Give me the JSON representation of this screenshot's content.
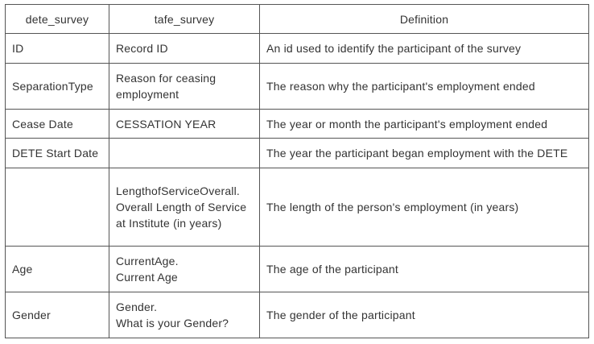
{
  "table": {
    "headers": [
      "dete_survey",
      "tafe_survey",
      "Definition"
    ],
    "rows": [
      {
        "dete": "ID",
        "tafe": [
          "Record ID"
        ],
        "definition": "An id used to identify the participant of the survey"
      },
      {
        "dete": "SeparationType",
        "tafe": [
          "Reason for ceasing",
          "employment"
        ],
        "definition": "The reason why the participant's employment ended"
      },
      {
        "dete": "Cease Date",
        "tafe": [
          "CESSATION YEAR"
        ],
        "definition": "The year or month the participant's employment ended"
      },
      {
        "dete": "DETE Start Date",
        "tafe": [],
        "definition": "The year the participant began employment with the DETE"
      },
      {
        "dete": "",
        "tafe": [
          "LengthofServiceOverall.",
          "Overall Length of Service",
          "at Institute (in years)"
        ],
        "definition": "The length of the person's employment (in years)"
      },
      {
        "dete": "Age",
        "tafe": [
          "CurrentAge.",
          "Current Age"
        ],
        "definition": "The age of the participant"
      },
      {
        "dete": "Gender",
        "tafe": [
          "Gender.",
          "What is your Gender?"
        ],
        "definition": "The gender of the participant"
      }
    ]
  }
}
